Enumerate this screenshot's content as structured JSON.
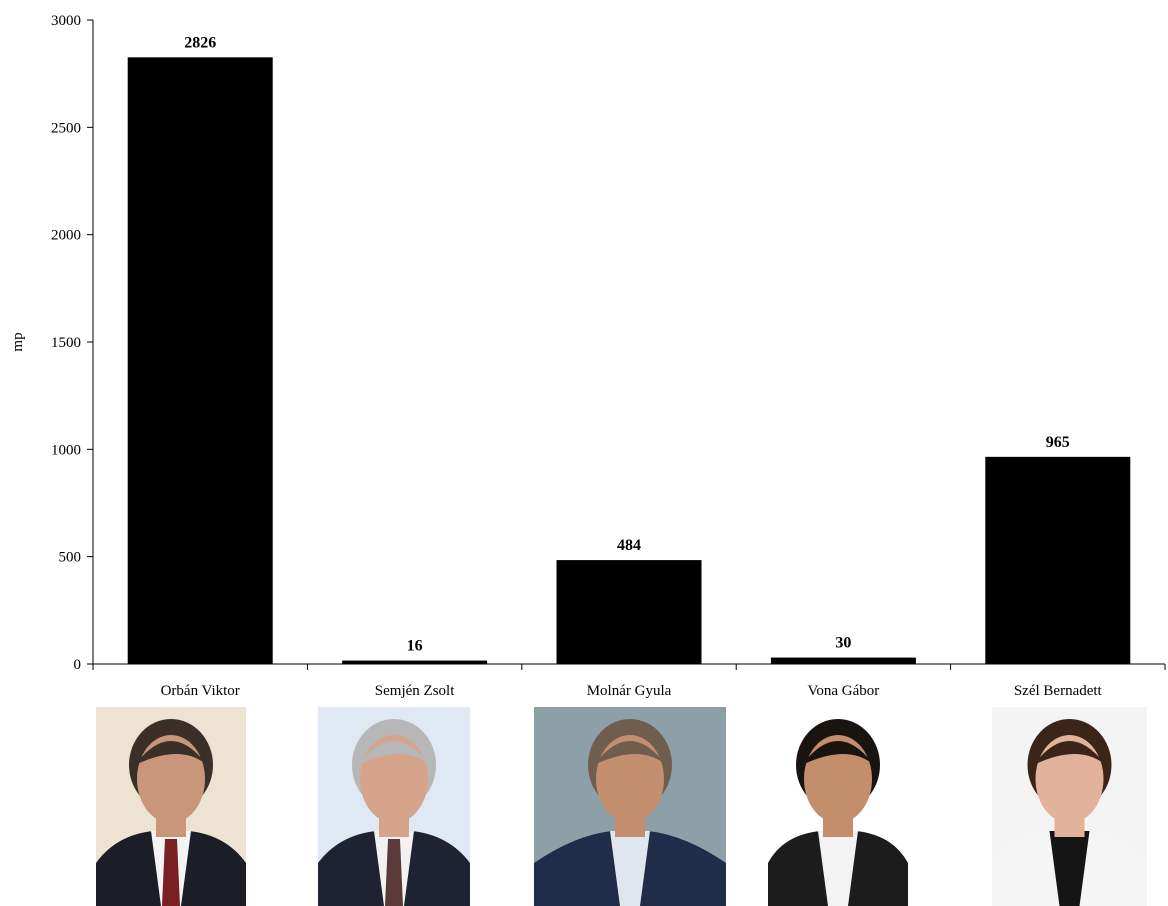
{
  "chart_data": {
    "type": "bar",
    "title": "",
    "xlabel": "",
    "ylabel": "mp",
    "ylim": [
      0,
      3000
    ],
    "yticks": [
      0,
      500,
      1000,
      1500,
      2000,
      2500,
      3000
    ],
    "grid": false,
    "legend": "none",
    "bar_color": "#000000",
    "categories": [
      "Orbán Viktor",
      "Semjén Zsolt",
      "Molnár Gyula",
      "Vona Gábor",
      "Szél Bernadett"
    ],
    "values": [
      2826,
      16,
      484,
      30,
      965
    ],
    "data_labels": [
      "2826",
      "16",
      "484",
      "30",
      "965"
    ]
  },
  "photos": [
    {
      "icon": "portrait-icon",
      "suit": "#1b1e26",
      "shirt": "#f4f4f4",
      "tie": "#7a1f24",
      "background": "#ece3d3",
      "hair": "#3a3028",
      "skin": "#c9967a"
    },
    {
      "icon": "portrait-icon",
      "suit": "#1e2233",
      "shirt": "#f2f2f2",
      "tie": "#5a3a3a",
      "background": "#dfe8f3",
      "hair": "#b7b7b7",
      "skin": "#d5a48a"
    },
    {
      "icon": "portrait-icon",
      "suit": "#1f2c4a",
      "shirt": "#dfe6ee",
      "tie": "",
      "background": "#8da0a8",
      "hair": "#6f5e4e",
      "skin": "#c38f6e"
    },
    {
      "icon": "portrait-icon",
      "suit": "#1c1c1c",
      "shirt": "#f3f3f3",
      "tie": "",
      "background": "#ffffff",
      "hair": "#1a1411",
      "skin": "#c48d6c"
    },
    {
      "icon": "portrait-icon",
      "suit": "#f5f5f5",
      "shirt": "#151515",
      "tie": "",
      "background": "#f4f4f4",
      "hair": "#3b2418",
      "skin": "#e2b39a"
    }
  ]
}
